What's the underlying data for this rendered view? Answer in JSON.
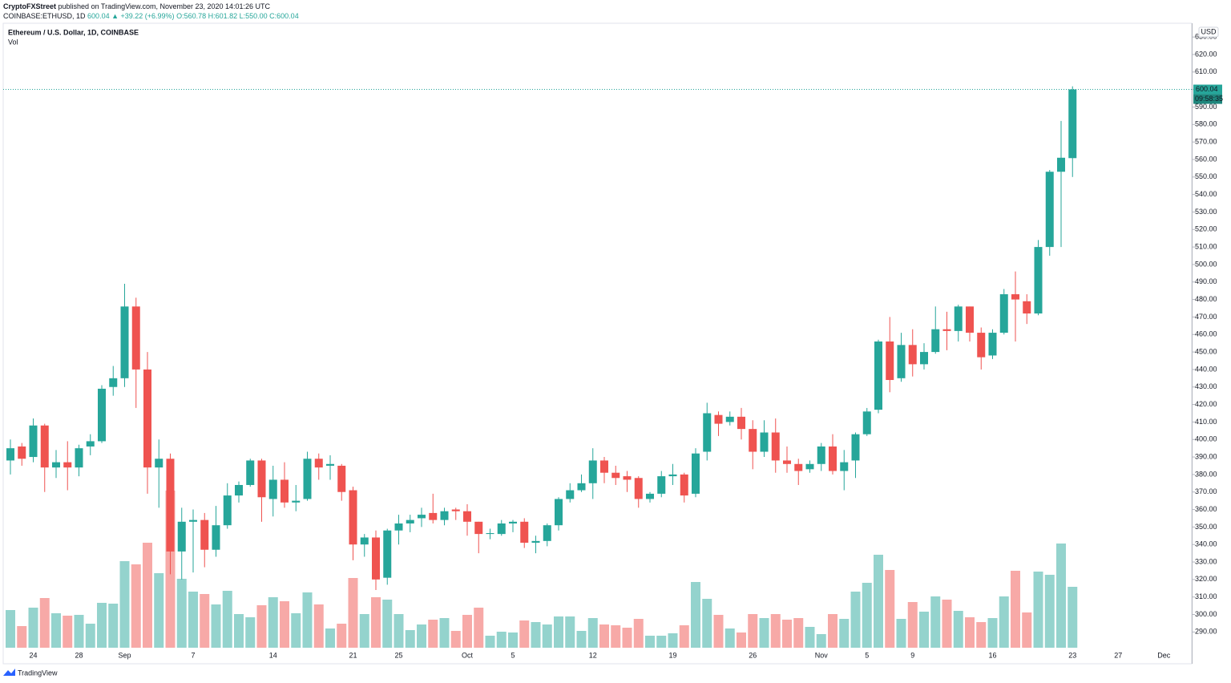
{
  "header": {
    "author": "CryptoFXStreet",
    "published": "published on TradingView.com, November 23, 2020 14:01:26 UTC",
    "symbol": "COINBASE:ETHUSD, 1D",
    "last": "600.04",
    "change": "▲ +39.22 (+6.99%)",
    "ohlc": "O:560.78 H:601.82 L:550.00 C:600.04"
  },
  "chart_data": {
    "type": "candlestick",
    "title": "Ethereum / U.S. Dollar, 1D, COINBASE",
    "volume_label": "Vol",
    "currency": "USD",
    "countdown": "09:58:35",
    "logo": "TradingView",
    "up_color": "#26a69a",
    "down_color": "#ef5350",
    "volume_up_color": "#94d3cd",
    "volume_down_color": "#f7a9a7",
    "grid": false,
    "categories": [
      null,
      null,
      "24",
      null,
      null,
      null,
      "28",
      null,
      null,
      null,
      "Sep",
      null,
      null,
      null,
      null,
      null,
      "7",
      null,
      null,
      null,
      null,
      null,
      null,
      "14",
      null,
      null,
      null,
      null,
      null,
      null,
      "21",
      null,
      null,
      null,
      "25",
      null,
      null,
      null,
      null,
      null,
      "Oct",
      null,
      null,
      null,
      "5",
      null,
      null,
      null,
      null,
      null,
      null,
      "12",
      null,
      null,
      null,
      null,
      null,
      null,
      "19",
      null,
      null,
      null,
      null,
      null,
      null,
      "26",
      null,
      null,
      null,
      null,
      null,
      "Nov",
      null,
      null,
      null,
      "5",
      null,
      null,
      null,
      "9",
      null,
      null,
      null,
      null,
      null,
      null,
      "16",
      null,
      null,
      null,
      null,
      null,
      null,
      "23",
      null,
      null,
      null,
      "27",
      null,
      null,
      null,
      "Dec",
      null
    ],
    "open": [
      388,
      396,
      390,
      408,
      384,
      387,
      384,
      396,
      399,
      430,
      435,
      476,
      440,
      384,
      389,
      336,
      353,
      354,
      337,
      351,
      368,
      374,
      388,
      366,
      377,
      364,
      366,
      389,
      385,
      385,
      371,
      340,
      344,
      321,
      348,
      352,
      355,
      358,
      354,
      360,
      359,
      353,
      346,
      346,
      352,
      353,
      341,
      342,
      351,
      366,
      371,
      375,
      388,
      381,
      379,
      378,
      366,
      369,
      379,
      380,
      369,
      393,
      414,
      410,
      413,
      406,
      393,
      404,
      388,
      386,
      383,
      386,
      396,
      382,
      388,
      403,
      417,
      456,
      435,
      454,
      443,
      450,
      463,
      462,
      476,
      461,
      448,
      461,
      483,
      479,
      472,
      510,
      553,
      560.78,
      null,
      null,
      null,
      null,
      null,
      null,
      null,
      null,
      null
    ],
    "high": [
      400,
      398,
      412,
      409,
      394,
      399,
      397,
      403,
      431,
      442,
      489,
      481,
      450,
      400,
      392,
      361,
      360,
      358,
      362,
      375,
      376,
      389,
      389,
      385,
      387,
      374,
      393,
      392,
      391,
      386,
      373,
      346,
      348,
      349,
      357,
      357,
      361,
      369,
      361,
      361,
      363,
      353,
      349,
      354,
      354,
      355,
      345,
      352,
      367,
      375,
      380,
      395,
      390,
      385,
      382,
      379,
      370,
      382,
      386,
      381,
      395,
      421,
      416,
      416,
      418,
      411,
      411,
      412,
      396,
      389,
      388,
      398,
      403,
      394,
      404,
      418,
      457,
      470,
      461,
      463,
      455,
      476,
      473,
      477,
      476,
      464,
      463,
      486,
      496,
      483,
      514,
      554,
      582,
      601.82,
      null,
      null,
      null,
      null,
      null,
      null,
      null,
      null,
      null
    ],
    "low": [
      380,
      385,
      387,
      370,
      378,
      371,
      379,
      391,
      398,
      425,
      430,
      418,
      369,
      361,
      323,
      320,
      324,
      327,
      333,
      349,
      364,
      373,
      353,
      356,
      361,
      359,
      365,
      377,
      377,
      365,
      331,
      333,
      314,
      317,
      340,
      347,
      350,
      352,
      351,
      354,
      345,
      335,
      343,
      345,
      347,
      338,
      335,
      339,
      348,
      364,
      370,
      366,
      375,
      374,
      370,
      361,
      364,
      367,
      374,
      364,
      367,
      388,
      402,
      408,
      400,
      383,
      390,
      381,
      381,
      374,
      381,
      382,
      380,
      371,
      378,
      402,
      415,
      427,
      433,
      436,
      440,
      449,
      451,
      456,
      456,
      440,
      446,
      460,
      456,
      466,
      471,
      505,
      510,
      550,
      null,
      null,
      null,
      null,
      null,
      null,
      null,
      null,
      null
    ],
    "close": [
      395,
      389,
      408,
      384,
      387,
      384,
      395,
      399,
      429,
      435,
      476,
      440,
      384,
      389,
      336,
      353,
      354,
      337,
      351,
      368,
      374,
      388,
      367,
      377,
      364,
      365,
      389,
      384,
      386,
      370,
      340,
      344,
      320,
      348,
      352,
      354,
      357,
      354,
      359,
      359,
      353,
      346,
      346.5,
      352,
      353,
      341,
      342,
      351,
      366,
      371,
      375,
      388,
      381,
      378,
      377,
      366,
      369,
      379,
      380,
      368,
      392,
      415,
      409,
      413,
      406,
      393,
      404,
      388,
      386,
      382,
      386,
      396,
      382,
      387,
      403,
      416,
      456,
      434,
      454,
      443,
      450,
      463,
      462,
      476,
      461,
      447,
      461,
      483,
      480,
      472,
      510,
      553,
      561,
      600.04,
      null,
      null,
      null,
      null,
      null,
      null,
      null,
      null,
      null
    ],
    "volume": [
      47,
      27,
      50,
      62,
      43,
      40,
      41,
      30,
      56,
      55,
      108,
      104,
      131,
      93,
      196,
      86,
      70,
      67,
      54,
      71,
      42,
      38,
      53,
      63,
      58,
      43,
      69,
      54,
      24,
      30,
      87,
      42,
      63,
      60,
      42,
      22,
      29,
      35,
      37,
      21,
      41,
      50,
      15,
      20,
      19,
      34,
      32,
      29,
      39,
      39,
      21,
      37,
      29,
      28,
      25,
      36,
      15,
      15,
      18,
      28,
      82,
      61,
      41,
      24,
      19,
      42,
      37,
      42,
      35,
      37,
      26,
      17,
      42,
      36,
      70,
      81,
      116,
      97,
      36,
      57,
      45,
      64,
      60,
      46,
      38,
      32,
      37,
      64,
      96,
      44,
      95,
      91,
      130,
      76,
      null,
      null,
      null,
      null,
      null,
      null,
      null,
      null,
      null
    ],
    "vol_ylim": [
      0,
      778
    ],
    "ylim": [
      281,
      637.4
    ],
    "yticks": [
      {
        "value": 290,
        "label": "290.00"
      },
      {
        "value": 300,
        "label": "300.00"
      },
      {
        "value": 310,
        "label": "310.00"
      },
      {
        "value": 320,
        "label": "320.00"
      },
      {
        "value": 330,
        "label": "330.00"
      },
      {
        "value": 340,
        "label": "340.00"
      },
      {
        "value": 350,
        "label": "350.00"
      },
      {
        "value": 360,
        "label": "360.00"
      },
      {
        "value": 370,
        "label": "370.00"
      },
      {
        "value": 380,
        "label": "380.00"
      },
      {
        "value": 390,
        "label": "390.00"
      },
      {
        "value": 400,
        "label": "400.00"
      },
      {
        "value": 410,
        "label": "410.00"
      },
      {
        "value": 420,
        "label": "420.00"
      },
      {
        "value": 430,
        "label": "430.00"
      },
      {
        "value": 440,
        "label": "440.00"
      },
      {
        "value": 450,
        "label": "450.00"
      },
      {
        "value": 460,
        "label": "460.00"
      },
      {
        "value": 470,
        "label": "470.00"
      },
      {
        "value": 480,
        "label": "480.00"
      },
      {
        "value": 490,
        "label": "490.00"
      },
      {
        "value": 500,
        "label": "500.00"
      },
      {
        "value": 510,
        "label": "510.00"
      },
      {
        "value": 520,
        "label": "520.00"
      },
      {
        "value": 530,
        "label": "530.00"
      },
      {
        "value": 540,
        "label": "540.00"
      },
      {
        "value": 550,
        "label": "550.00"
      },
      {
        "value": 560,
        "label": "560.00"
      },
      {
        "value": 570,
        "label": "570.00"
      },
      {
        "value": 580,
        "label": "580.00"
      },
      {
        "value": 590,
        "label": "590.00"
      },
      {
        "value": 600,
        "label": "600.00"
      },
      {
        "value": 610,
        "label": "610.00"
      },
      {
        "value": 620,
        "label": "620.00"
      },
      {
        "value": 630,
        "label": "630.00"
      }
    ]
  }
}
